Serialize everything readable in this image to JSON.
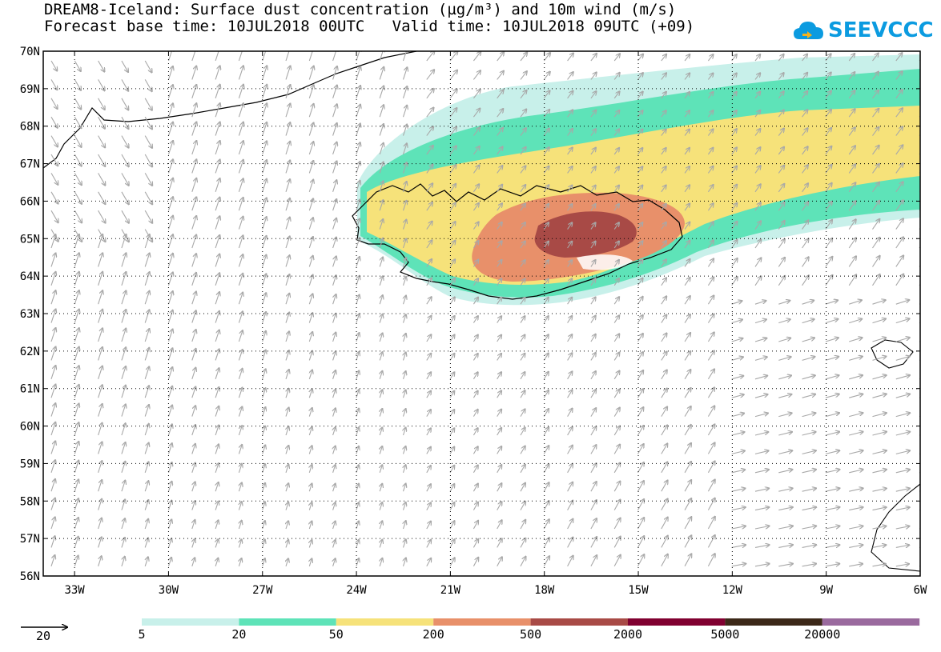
{
  "title_line1": "DREAM8-Iceland: Surface dust concentration (µg/m³) and 10m wind (m/s)",
  "title_line2": "Forecast base time: 10JUL2018 00UTC   Valid time: 10JUL2018 09UTC (+09)",
  "logo_text": "SEEVCCC",
  "map": {
    "lon_range": [
      -34,
      -6
    ],
    "lat_range": [
      56,
      70
    ],
    "lon_tick_labels": [
      "33W",
      "30W",
      "27W",
      "24W",
      "21W",
      "18W",
      "15W",
      "12W",
      "9W",
      "6W"
    ],
    "lat_tick_labels": [
      "70N",
      "69N",
      "68N",
      "67N",
      "66N",
      "65N",
      "64N",
      "63N",
      "62N",
      "61N",
      "60N",
      "59N",
      "58N",
      "57N",
      "56N"
    ],
    "wind_vector_color": "#a8a8a8",
    "grid": "dotted"
  },
  "legend": {
    "reference_vector_label": "20",
    "thresholds": [
      "5",
      "20",
      "50",
      "200",
      "500",
      "2000",
      "5000",
      "20000"
    ],
    "colors": [
      "#c8f0ea",
      "#5ee3b8",
      "#f6e27a",
      "#e8906a",
      "#a84a46",
      "#800030",
      "#3c2818",
      "#9a6a9e"
    ]
  }
}
